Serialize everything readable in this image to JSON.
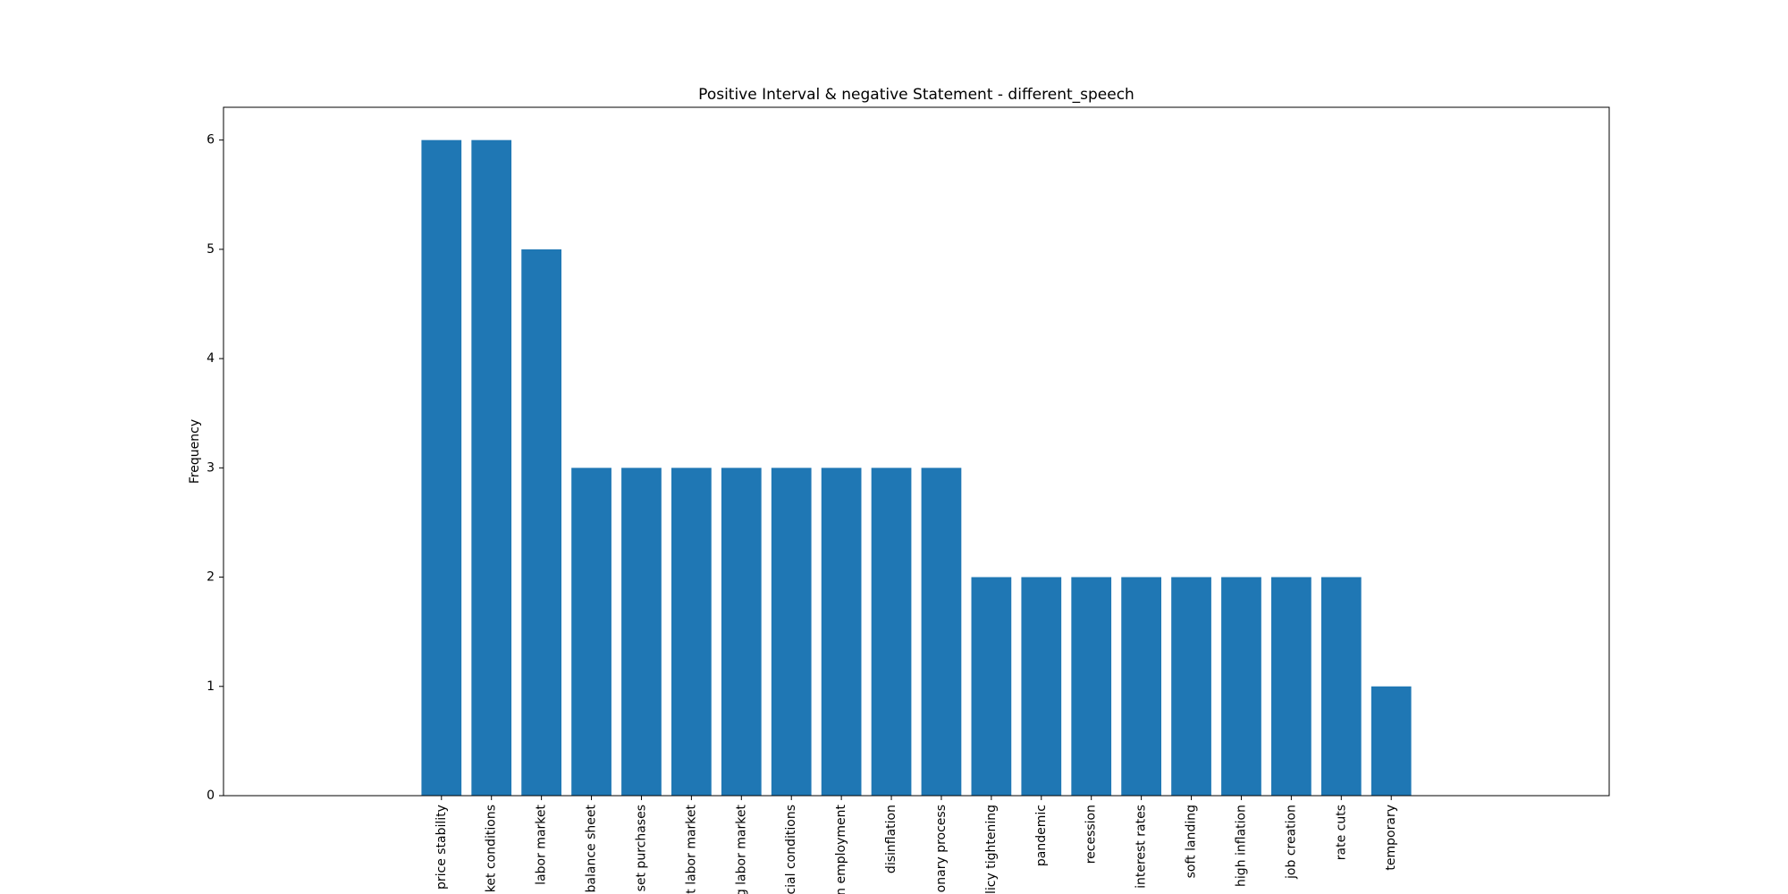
{
  "chart_data": {
    "type": "bar",
    "title": "Positive Interval & negative Statement - different_speech",
    "y_label": "Frequency",
    "categories": [
      "price stability",
      "ket conditions",
      "labor market",
      "balance sheet",
      "set purchases",
      "t labor market",
      "g labor market",
      "cial conditions",
      "n employment",
      "disinflation",
      "onary process",
      "licy tightening",
      "pandemic",
      "recession",
      "interest rates",
      "soft landing",
      "high inflation",
      "job creation",
      "rate cuts",
      "temporary"
    ],
    "values": [
      6,
      6,
      5,
      3,
      3,
      3,
      3,
      3,
      3,
      3,
      3,
      2,
      2,
      2,
      2,
      2,
      2,
      2,
      2,
      1
    ],
    "color": "#1f77b4",
    "ylim": [
      0,
      6.3
    ],
    "yticks": [
      0,
      1,
      2,
      3,
      4,
      5,
      6
    ],
    "grid": false
  }
}
